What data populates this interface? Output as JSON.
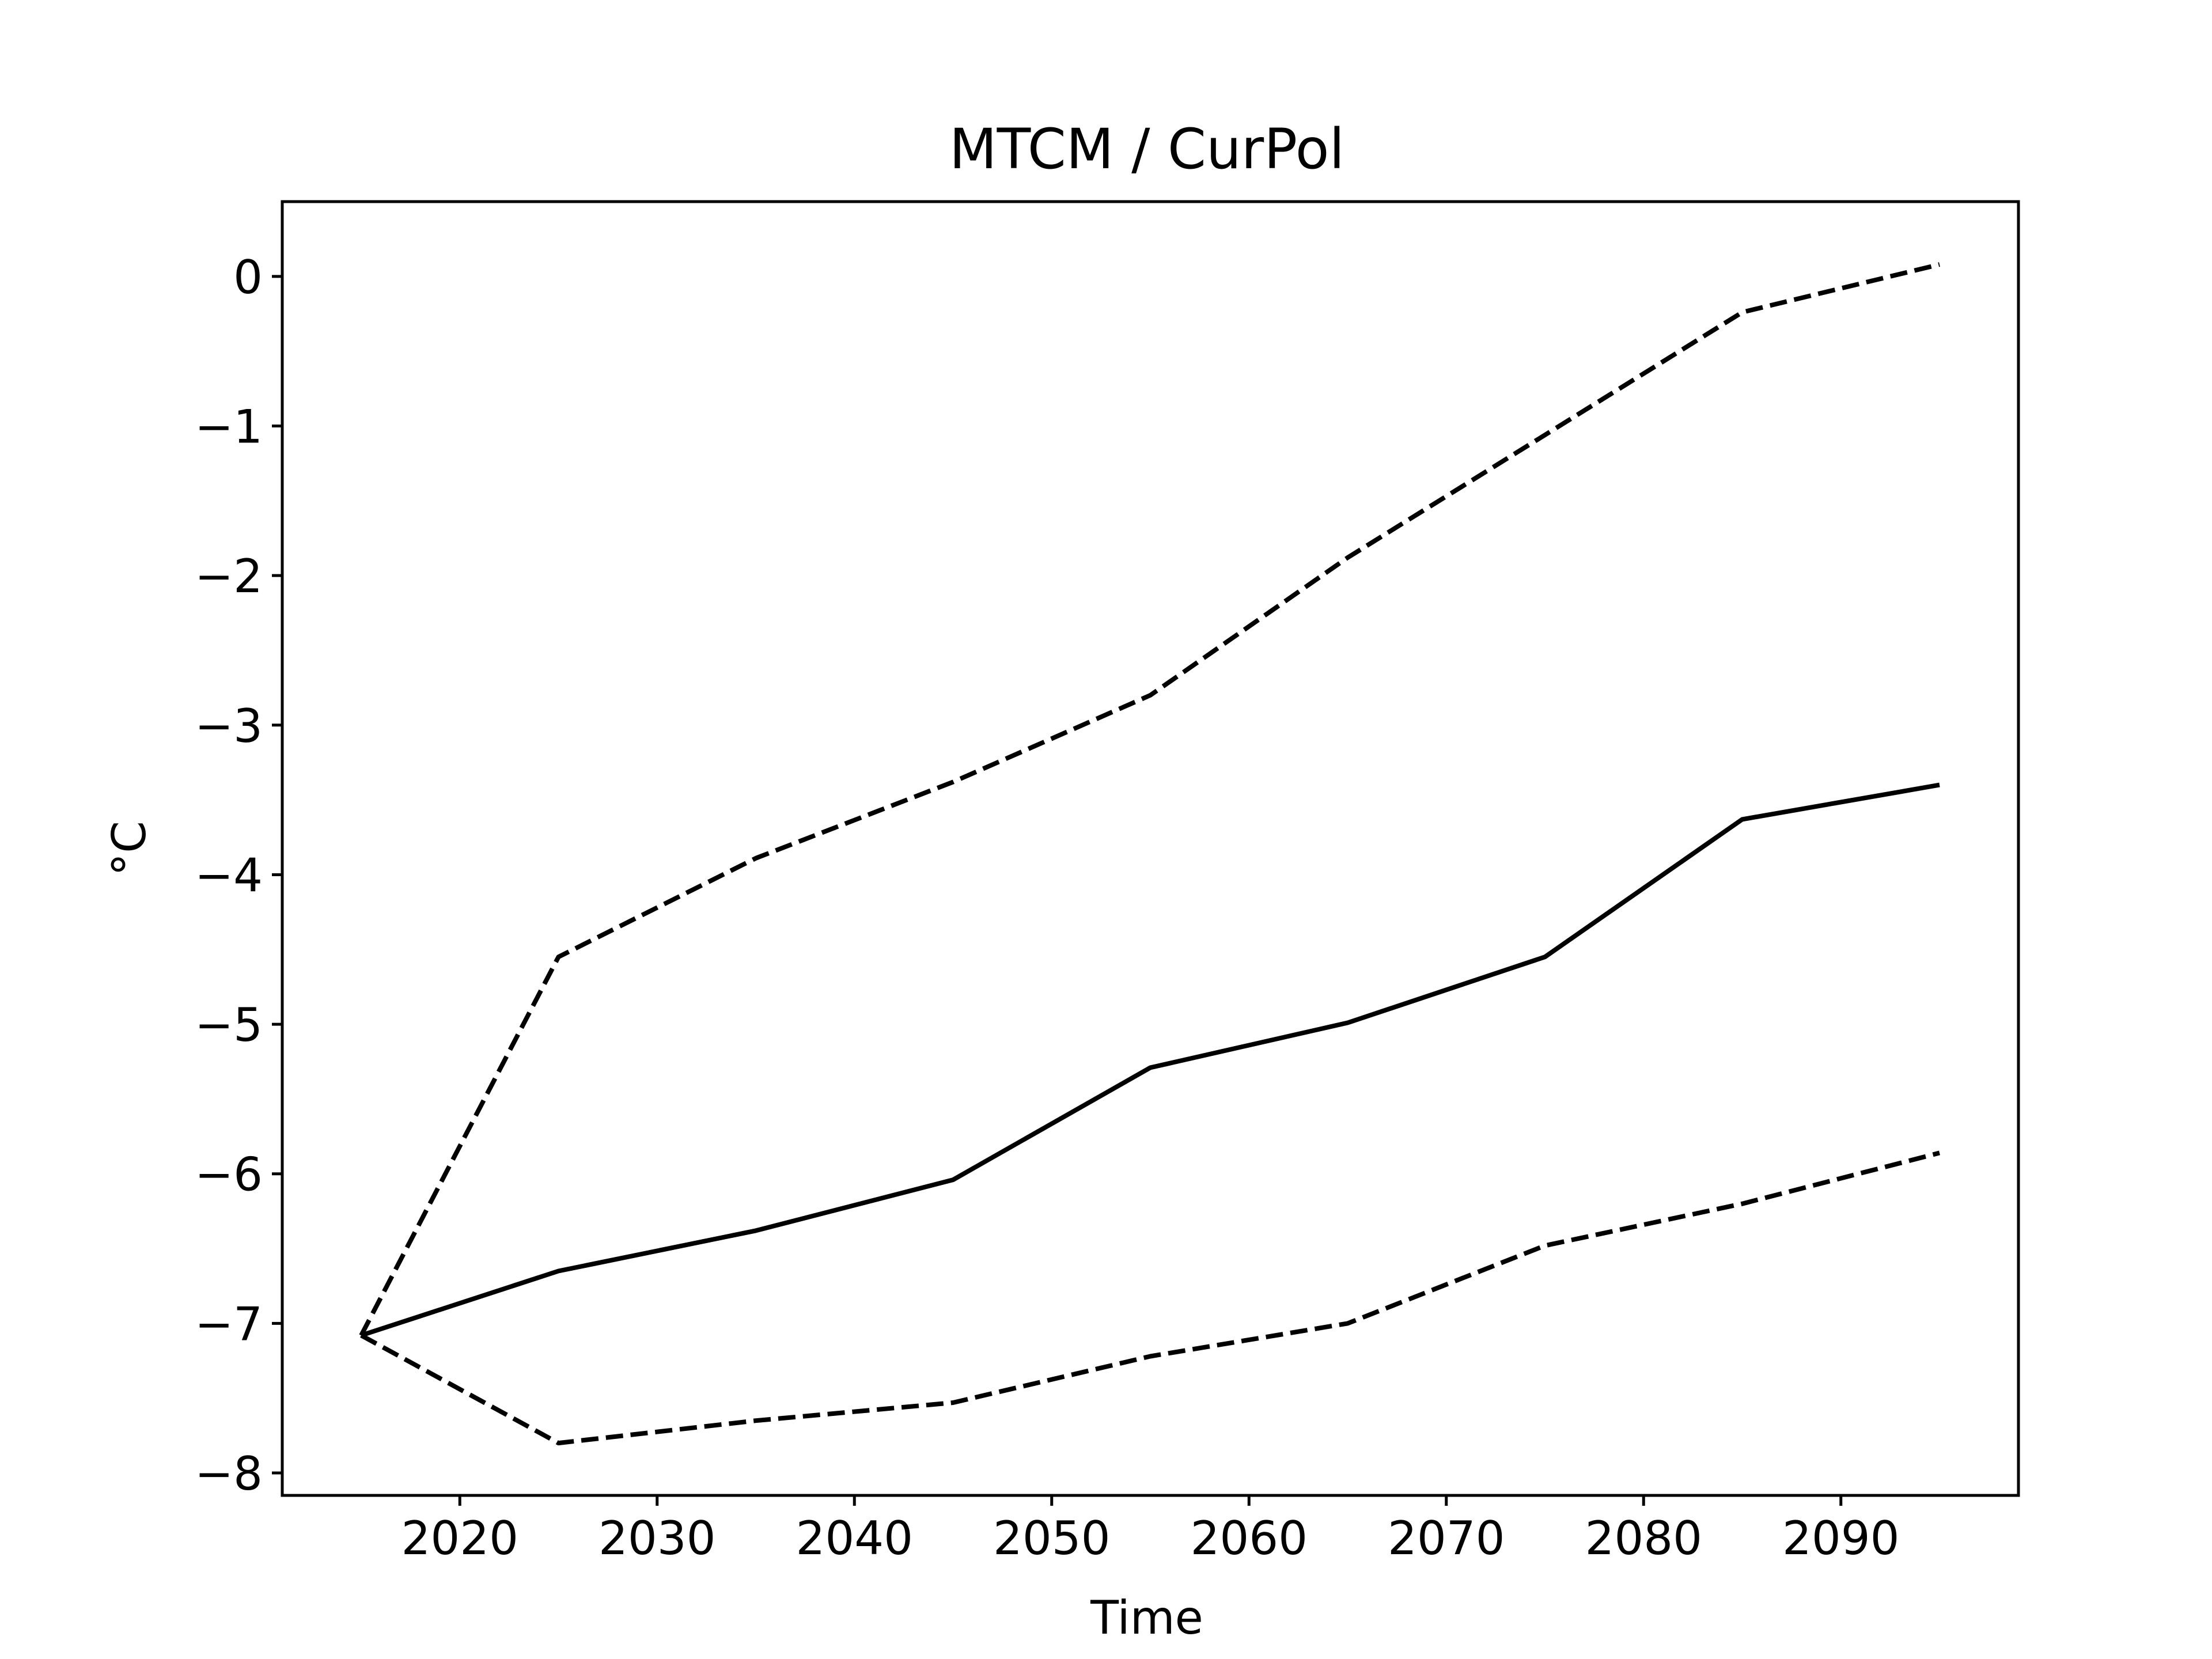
{
  "chart_data": {
    "type": "line",
    "title": "MTCM / CurPol",
    "xlabel": "Time",
    "ylabel": "°C",
    "xlim": [
      2011,
      2099
    ],
    "ylim": [
      -8.15,
      0.5
    ],
    "x_ticks": [
      2020,
      2030,
      2040,
      2050,
      2060,
      2070,
      2080,
      2090
    ],
    "y_ticks": [
      0,
      -1,
      -2,
      -3,
      -4,
      -5,
      -6,
      -7,
      -8
    ],
    "y_tick_labels": [
      "0",
      "−1",
      "−2",
      "−3",
      "−4",
      "−5",
      "−6",
      "−7",
      "−8"
    ],
    "grid": false,
    "x": [
      2015,
      2025,
      2035,
      2045,
      2055,
      2065,
      2075,
      2085,
      2095
    ],
    "series": [
      {
        "style": "solid",
        "color": "#000000",
        "values": [
          -7.08,
          -6.65,
          -6.38,
          -6.04,
          -5.29,
          -4.99,
          -4.55,
          -3.63,
          -3.4
        ]
      },
      {
        "style": "dashed",
        "color": "#000000",
        "values": [
          -7.08,
          -4.55,
          -3.89,
          -3.38,
          -2.8,
          -1.88,
          -1.06,
          -0.24,
          0.08
        ]
      },
      {
        "style": "dashed",
        "color": "#000000",
        "values": [
          -7.08,
          -7.8,
          -7.65,
          -7.53,
          -7.22,
          -7.0,
          -6.48,
          -6.2,
          -5.86
        ]
      }
    ]
  }
}
